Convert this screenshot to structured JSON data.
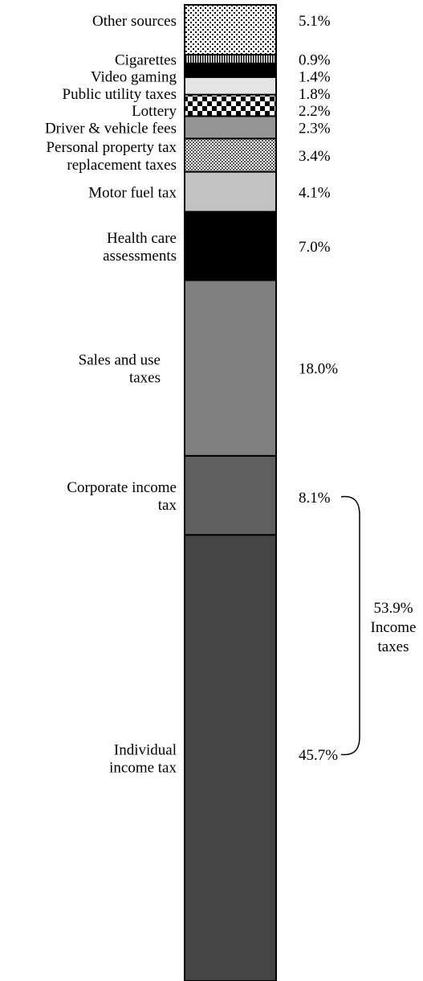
{
  "chart_data": {
    "type": "stacked-bar",
    "orientation": "vertical",
    "segments": [
      {
        "label": "Individual income tax",
        "value": 45.7,
        "value_label": "45.7%",
        "color": "#454545",
        "pattern": "solid"
      },
      {
        "label": "Corporate income tax",
        "value": 8.1,
        "value_label": "8.1%",
        "color": "#5f5f5f",
        "pattern": "solid"
      },
      {
        "label": "Sales and use taxes",
        "value": 18.0,
        "value_label": "18.0%",
        "color": "#808080",
        "pattern": "solid"
      },
      {
        "label": "Health care assessments",
        "value": 7.0,
        "value_label": "7.0%",
        "color": "#000000",
        "pattern": "solid"
      },
      {
        "label": "Motor fuel tax",
        "value": 4.1,
        "value_label": "4.1%",
        "color": "#c2c2c2",
        "pattern": "solid"
      },
      {
        "label": "Personal property tax replacement taxes",
        "value": 3.4,
        "value_label": "3.4%",
        "color": "#9a9a9a",
        "pattern": "crosshatch"
      },
      {
        "label": "Driver & vehicle fees",
        "value": 2.3,
        "value_label": "2.3%",
        "color": "#959595",
        "pattern": "solid"
      },
      {
        "label": "Lottery",
        "value": 2.2,
        "value_label": "2.2%",
        "color": "#000000",
        "pattern": "checker"
      },
      {
        "label": "Public utility taxes",
        "value": 1.8,
        "value_label": "1.8%",
        "color": "#e4e4e4",
        "pattern": "solid"
      },
      {
        "label": "Video gaming",
        "value": 1.4,
        "value_label": "1.4%",
        "color": "#000000",
        "pattern": "solid"
      },
      {
        "label": "Cigarettes",
        "value": 0.9,
        "value_label": "0.9%",
        "color": "#555555",
        "pattern": "vertical-lines"
      },
      {
        "label": "Other sources",
        "value": 5.1,
        "value_label": "5.1%",
        "color": "#000000",
        "pattern": "dots"
      }
    ],
    "bracket": {
      "spans": [
        "Individual income tax",
        "Corporate income tax"
      ],
      "value": 53.9,
      "lines": [
        "53.9%",
        "Income",
        "taxes"
      ]
    }
  }
}
